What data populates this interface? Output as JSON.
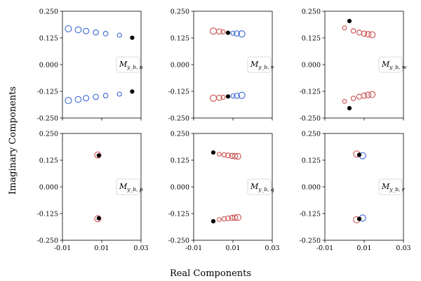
{
  "figure": {
    "xlabel": "Real Components",
    "ylabel": "Imaginary Components"
  },
  "chart_data": [
    {
      "type": "scatter",
      "legend": {
        "main": "M",
        "sub": "y_b, u",
        "position": "center-right"
      },
      "xlim": [
        -0.01,
        0.03
      ],
      "ylim": [
        -0.25,
        0.25
      ],
      "xticks": [
        "-0.01",
        "0.01",
        "0.03"
      ],
      "show_xticklabels": false,
      "yticks": [
        "0.250",
        "0.125",
        "0.000",
        "-0.125",
        "-0.250"
      ],
      "show_yticklabels": true,
      "series": [
        {
          "color": "#4a72d4",
          "filled": false,
          "points": [
            [
              -0.007,
              0.168
            ],
            [
              -0.002,
              0.163
            ],
            [
              0.002,
              0.157
            ],
            [
              0.007,
              0.151
            ],
            [
              0.012,
              0.145
            ],
            [
              0.019,
              0.138
            ],
            [
              -0.007,
              -0.168
            ],
            [
              -0.002,
              -0.163
            ],
            [
              0.002,
              -0.157
            ],
            [
              0.007,
              -0.151
            ],
            [
              0.012,
              -0.145
            ],
            [
              0.019,
              -0.138
            ]
          ],
          "sizes": [
            4.5,
            4.3,
            4.0,
            3.7,
            3.3,
            3.0,
            4.5,
            4.3,
            4.0,
            3.7,
            3.3,
            3.0
          ]
        },
        {
          "color": "#000000",
          "filled": true,
          "points": [
            [
              0.0255,
              0.126
            ],
            [
              0.0255,
              -0.126
            ]
          ]
        }
      ]
    },
    {
      "type": "scatter",
      "legend": {
        "main": "M",
        "sub": "y_b, v",
        "position": "center-right"
      },
      "xlim": [
        -0.01,
        0.03
      ],
      "ylim": [
        -0.25,
        0.25
      ],
      "xticks": [
        "-0.01",
        "0.01",
        "0.03"
      ],
      "show_xticklabels": false,
      "yticks": [
        "0.250",
        "0.125",
        "0.000",
        "-0.125",
        "-0.250"
      ],
      "show_yticklabels": true,
      "series": [
        {
          "color": "#cd5c5c",
          "filled": false,
          "points": [
            [
              0.0,
              0.157
            ],
            [
              0.003,
              0.155
            ],
            [
              0.005,
              0.153
            ],
            [
              0.0,
              -0.157
            ],
            [
              0.003,
              -0.155
            ],
            [
              0.005,
              -0.153
            ]
          ],
          "sizes": [
            4.5,
            3.8,
            3.0,
            4.5,
            3.8,
            3.0
          ]
        },
        {
          "color": "#4a72d4",
          "filled": false,
          "points": [
            [
              0.01,
              0.147
            ],
            [
              0.012,
              0.146
            ],
            [
              0.0145,
              0.144
            ],
            [
              0.01,
              -0.147
            ],
            [
              0.012,
              -0.146
            ],
            [
              0.0145,
              -0.144
            ]
          ],
          "sizes": [
            3.0,
            3.8,
            4.5,
            3.0,
            3.8,
            4.5
          ]
        },
        {
          "color": "#000000",
          "filled": true,
          "points": [
            [
              0.0075,
              0.149
            ],
            [
              0.0075,
              -0.149
            ]
          ]
        }
      ]
    },
    {
      "type": "scatter",
      "legend": {
        "main": "M",
        "sub": "y_b, w",
        "position": "center-right"
      },
      "xlim": [
        -0.01,
        0.03
      ],
      "ylim": [
        -0.25,
        0.25
      ],
      "xticks": [
        "-0.01",
        "0.01",
        "0.03"
      ],
      "show_xticklabels": false,
      "yticks": [
        "0.250",
        "0.125",
        "0.000",
        "-0.125",
        "-0.250"
      ],
      "show_yticklabels": true,
      "series": [
        {
          "color": "#cd5c5c",
          "filled": false,
          "points": [
            [
              0.0,
              0.172
            ],
            [
              0.0045,
              0.158
            ],
            [
              0.0075,
              0.15
            ],
            [
              0.01,
              0.145
            ],
            [
              0.012,
              0.142
            ],
            [
              0.014,
              0.14
            ],
            [
              0.0,
              -0.172
            ],
            [
              0.0045,
              -0.158
            ],
            [
              0.0075,
              -0.15
            ],
            [
              0.01,
              -0.145
            ],
            [
              0.012,
              -0.142
            ],
            [
              0.014,
              -0.14
            ]
          ],
          "sizes": [
            2.8,
            3.2,
            3.5,
            3.8,
            4.1,
            4.4,
            2.8,
            3.2,
            3.5,
            3.8,
            4.1,
            4.4
          ]
        },
        {
          "color": "#000000",
          "filled": true,
          "points": [
            [
              0.0025,
              0.204
            ],
            [
              0.0025,
              -0.204
            ]
          ]
        }
      ]
    },
    {
      "type": "scatter",
      "legend": {
        "main": "M",
        "sub": "y_b, p",
        "position": "center-right"
      },
      "xlim": [
        -0.01,
        0.03
      ],
      "ylim": [
        -0.25,
        0.25
      ],
      "xticks": [
        "-0.01",
        "0.01",
        "0.03"
      ],
      "show_xticklabels": true,
      "yticks": [
        "0.250",
        "0.125",
        "0.000",
        "-0.125",
        "-0.250"
      ],
      "show_yticklabels": true,
      "series": [
        {
          "color": "#cd5c5c",
          "filled": false,
          "points": [
            [
              0.008,
              0.149
            ],
            [
              0.008,
              -0.149
            ]
          ],
          "sizes": [
            4.5,
            4.5
          ]
        },
        {
          "color": "#000000",
          "filled": true,
          "points": [
            [
              0.0085,
              0.147
            ],
            [
              0.0085,
              -0.147
            ]
          ]
        }
      ]
    },
    {
      "type": "scatter",
      "legend": {
        "main": "M",
        "sub": "y_b, q",
        "position": "center-right"
      },
      "xlim": [
        -0.01,
        0.03
      ],
      "ylim": [
        -0.25,
        0.25
      ],
      "xticks": [
        "-0.01",
        "0.01",
        "0.03"
      ],
      "show_xticklabels": true,
      "yticks": [
        "0.250",
        "0.125",
        "0.000",
        "-0.125",
        "-0.250"
      ],
      "show_yticklabels": true,
      "series": [
        {
          "color": "#cd5c5c",
          "filled": false,
          "points": [
            [
              0.003,
              0.153
            ],
            [
              0.0055,
              0.15
            ],
            [
              0.0075,
              0.147
            ],
            [
              0.0095,
              0.145
            ],
            [
              0.011,
              0.144
            ],
            [
              0.0125,
              0.143
            ],
            [
              0.003,
              -0.153
            ],
            [
              0.0055,
              -0.15
            ],
            [
              0.0075,
              -0.147
            ],
            [
              0.0095,
              -0.145
            ],
            [
              0.011,
              -0.144
            ],
            [
              0.0125,
              -0.143
            ]
          ],
          "sizes": [
            2.8,
            3.1,
            3.4,
            3.7,
            4.0,
            4.3,
            2.8,
            3.1,
            3.4,
            3.7,
            4.0,
            4.3
          ]
        },
        {
          "color": "#000000",
          "filled": true,
          "points": [
            [
              0.0,
              0.161
            ],
            [
              0.0,
              -0.161
            ]
          ]
        }
      ]
    },
    {
      "type": "scatter",
      "legend": {
        "main": "M",
        "sub": "y_b, r",
        "position": "center-right"
      },
      "xlim": [
        -0.01,
        0.03
      ],
      "ylim": [
        -0.25,
        0.25
      ],
      "xticks": [
        "-0.01",
        "0.01",
        "0.03"
      ],
      "show_xticklabels": true,
      "yticks": [
        "0.250",
        "0.125",
        "0.000",
        "-0.125",
        "-0.250"
      ],
      "show_yticklabels": true,
      "series": [
        {
          "color": "#cd5c5c",
          "filled": false,
          "points": [
            [
              0.0062,
              0.154
            ],
            [
              0.0062,
              -0.154
            ]
          ],
          "sizes": [
            4.5,
            4.5
          ]
        },
        {
          "color": "#4a72d4",
          "filled": false,
          "points": [
            [
              0.0092,
              0.146
            ],
            [
              0.0092,
              -0.146
            ]
          ],
          "sizes": [
            4.5,
            4.5
          ]
        },
        {
          "color": "#000000",
          "filled": true,
          "points": [
            [
              0.0075,
              0.15
            ],
            [
              0.0075,
              -0.15
            ]
          ]
        }
      ]
    }
  ]
}
